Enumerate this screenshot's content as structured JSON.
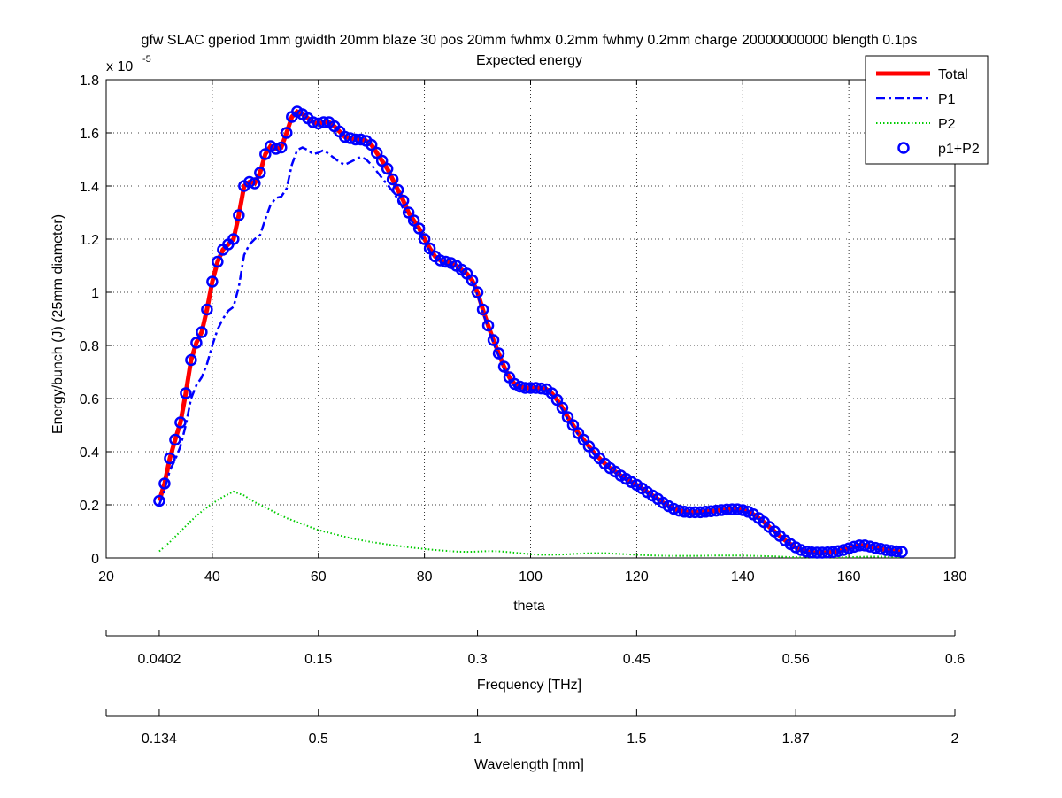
{
  "chart_data": {
    "type": "line",
    "title": "gfw SLAC gperiod 1mm gwidth 20mm blaze 30 pos 20mm fwhmx 0.2mm fwhmy 0.2mm charge 20000000000 blength 0.1ps",
    "subtitle": "Expected energy",
    "xlabel": "theta",
    "ylabel": "Energy/bunch (J) (25mm diameter)",
    "y_exponent_label": "x 10",
    "y_exponent_power": "-5",
    "xlim": [
      20,
      180
    ],
    "ylim": [
      0,
      1.8
    ],
    "x_ticks": [
      "20",
      "40",
      "60",
      "80",
      "100",
      "120",
      "140",
      "160",
      "180"
    ],
    "y_ticks": [
      "0",
      "0.2",
      "0.4",
      "0.6",
      "0.8",
      "1",
      "1.2",
      "1.4",
      "1.6",
      "1.8"
    ],
    "grid": true,
    "legend_position": "top-right",
    "colors": {
      "total": "#ff0000",
      "p1": "#0000ff",
      "p2": "#00cc00",
      "p1p2": "#0000ff"
    },
    "series": [
      {
        "name": "Total",
        "style": "solid-thick",
        "x": [
          30,
          31,
          32,
          33,
          34,
          35,
          36,
          37,
          38,
          39,
          40,
          41,
          42,
          43,
          44,
          45,
          46,
          47,
          48,
          49,
          50,
          51,
          52,
          53,
          54,
          55,
          56,
          57,
          58,
          59,
          60,
          61,
          62,
          63,
          64,
          65,
          66,
          67,
          68,
          69,
          70,
          71,
          72,
          73,
          74,
          75,
          76,
          77,
          78,
          79,
          80,
          81,
          82,
          83,
          84,
          85,
          86,
          87,
          88,
          89,
          90,
          91,
          92,
          93,
          94,
          95,
          96,
          97,
          98,
          99,
          100,
          101,
          102,
          103,
          104,
          105,
          106,
          107,
          108,
          109,
          110,
          111,
          112,
          113,
          114,
          115,
          116,
          117,
          118,
          119,
          120,
          121,
          122,
          123,
          124,
          125,
          126,
          127,
          128,
          129,
          130,
          131,
          132,
          133,
          134,
          135,
          136,
          137,
          138,
          139,
          140,
          141,
          142,
          143,
          144,
          145,
          146,
          147,
          148,
          149,
          150,
          151,
          152,
          153,
          154,
          155,
          156,
          157,
          158,
          159,
          160,
          161,
          162,
          163,
          164,
          165,
          166,
          167,
          168,
          169,
          170
        ],
        "values": [
          0.215,
          0.28,
          0.375,
          0.445,
          0.51,
          0.62,
          0.745,
          0.81,
          0.85,
          0.935,
          1.04,
          1.115,
          1.16,
          1.18,
          1.2,
          1.29,
          1.4,
          1.415,
          1.41,
          1.45,
          1.52,
          1.55,
          1.54,
          1.545,
          1.6,
          1.66,
          1.68,
          1.67,
          1.655,
          1.64,
          1.635,
          1.64,
          1.64,
          1.625,
          1.605,
          1.585,
          1.58,
          1.575,
          1.575,
          1.57,
          1.555,
          1.525,
          1.495,
          1.465,
          1.425,
          1.385,
          1.345,
          1.3,
          1.27,
          1.24,
          1.2,
          1.165,
          1.135,
          1.12,
          1.115,
          1.11,
          1.1,
          1.085,
          1.07,
          1.045,
          1.0,
          0.935,
          0.875,
          0.82,
          0.77,
          0.72,
          0.68,
          0.655,
          0.645,
          0.64,
          0.64,
          0.64,
          0.638,
          0.635,
          0.62,
          0.595,
          0.565,
          0.53,
          0.5,
          0.47,
          0.445,
          0.42,
          0.395,
          0.375,
          0.355,
          0.338,
          0.325,
          0.31,
          0.298,
          0.286,
          0.275,
          0.262,
          0.248,
          0.235,
          0.222,
          0.208,
          0.195,
          0.185,
          0.178,
          0.174,
          0.172,
          0.172,
          0.172,
          0.174,
          0.176,
          0.178,
          0.18,
          0.182,
          0.183,
          0.183,
          0.18,
          0.174,
          0.164,
          0.15,
          0.135,
          0.117,
          0.1,
          0.083,
          0.066,
          0.052,
          0.04,
          0.03,
          0.024,
          0.021,
          0.02,
          0.02,
          0.021,
          0.022,
          0.026,
          0.03,
          0.036,
          0.042,
          0.047,
          0.047,
          0.043,
          0.038,
          0.034,
          0.03,
          0.027,
          0.025,
          0.023
        ]
      },
      {
        "name": "P1",
        "style": "dash-dot",
        "x": [
          30,
          31,
          32,
          33,
          34,
          35,
          36,
          37,
          38,
          39,
          40,
          41,
          42,
          43,
          44,
          45,
          46,
          47,
          48,
          49,
          50,
          51,
          52,
          53,
          54,
          55,
          56,
          57,
          58,
          59,
          60,
          61,
          62,
          63,
          64,
          65,
          66,
          67,
          68,
          69,
          70,
          71,
          72,
          73,
          74,
          75,
          76,
          77,
          78,
          79,
          80,
          81,
          82,
          83,
          84,
          85,
          86,
          87,
          88,
          89,
          90,
          91,
          92,
          93,
          94,
          95,
          96,
          97,
          98,
          99,
          100,
          101,
          102,
          103,
          104,
          105,
          106,
          107,
          108,
          109,
          110,
          111,
          112,
          113,
          114,
          115,
          116,
          117,
          118,
          119,
          120,
          121,
          122,
          123,
          124,
          125,
          126,
          127,
          128,
          129,
          130,
          131,
          132,
          133,
          134,
          135,
          136,
          137,
          138,
          139,
          140,
          141,
          142,
          143,
          144,
          145,
          146,
          147,
          148,
          149,
          150,
          151,
          152,
          153,
          154,
          155,
          156,
          157,
          158,
          159,
          160,
          161,
          162,
          163,
          164,
          165,
          166,
          167,
          168,
          169,
          170
        ],
        "values": [
          0.2,
          0.255,
          0.33,
          0.37,
          0.42,
          0.5,
          0.6,
          0.65,
          0.68,
          0.73,
          0.8,
          0.86,
          0.9,
          0.93,
          0.945,
          1.02,
          1.14,
          1.18,
          1.2,
          1.215,
          1.275,
          1.33,
          1.355,
          1.36,
          1.39,
          1.48,
          1.535,
          1.545,
          1.535,
          1.52,
          1.525,
          1.535,
          1.52,
          1.505,
          1.49,
          1.48,
          1.49,
          1.5,
          1.51,
          1.5,
          1.48,
          1.455,
          1.43,
          1.405,
          1.38,
          1.35,
          1.315,
          1.285,
          1.255,
          1.225,
          1.19,
          1.155,
          1.13,
          1.115,
          1.105,
          1.1,
          1.09,
          1.075,
          1.06,
          1.035,
          0.99,
          0.925,
          0.865,
          0.81,
          0.76,
          0.71,
          0.67,
          0.645,
          0.635,
          0.632,
          0.632,
          0.632,
          0.63,
          0.627,
          0.612,
          0.588,
          0.558,
          0.523,
          0.493,
          0.463,
          0.438,
          0.413,
          0.389,
          0.369,
          0.349,
          0.332,
          0.319,
          0.304,
          0.293,
          0.281,
          0.27,
          0.257,
          0.243,
          0.23,
          0.217,
          0.203,
          0.19,
          0.18,
          0.173,
          0.169,
          0.167,
          0.167,
          0.167,
          0.169,
          0.171,
          0.173,
          0.175,
          0.177,
          0.178,
          0.178,
          0.175,
          0.169,
          0.159,
          0.145,
          0.131,
          0.113,
          0.096,
          0.08,
          0.063,
          0.049,
          0.037,
          0.027,
          0.021,
          0.018,
          0.017,
          0.017,
          0.018,
          0.019,
          0.023,
          0.027,
          0.032,
          0.038,
          0.043,
          0.043,
          0.039,
          0.034,
          0.03,
          0.026,
          0.023,
          0.021,
          0.019
        ]
      },
      {
        "name": "P2",
        "style": "dotted",
        "x": [
          30,
          32,
          34,
          36,
          38,
          40,
          42,
          44,
          46,
          48,
          50,
          52,
          54,
          56,
          58,
          60,
          62,
          64,
          66,
          68,
          70,
          72,
          74,
          76,
          78,
          80,
          82,
          84,
          86,
          88,
          90,
          92,
          94,
          96,
          98,
          100,
          102,
          104,
          106,
          108,
          110,
          112,
          114,
          116,
          118,
          120,
          122,
          124,
          126,
          128,
          130,
          132,
          134,
          136,
          138,
          140,
          142,
          144,
          146,
          148,
          150,
          152,
          154,
          156,
          158,
          160,
          162,
          164,
          166,
          168,
          170
        ],
        "values": [
          0.025,
          0.06,
          0.1,
          0.14,
          0.175,
          0.205,
          0.23,
          0.25,
          0.235,
          0.21,
          0.19,
          0.17,
          0.15,
          0.135,
          0.12,
          0.105,
          0.095,
          0.085,
          0.075,
          0.067,
          0.06,
          0.054,
          0.048,
          0.043,
          0.038,
          0.034,
          0.03,
          0.027,
          0.024,
          0.023,
          0.024,
          0.026,
          0.025,
          0.022,
          0.018,
          0.014,
          0.012,
          0.012,
          0.013,
          0.015,
          0.017,
          0.018,
          0.018,
          0.016,
          0.014,
          0.012,
          0.01,
          0.009,
          0.008,
          0.008,
          0.008,
          0.008,
          0.009,
          0.009,
          0.009,
          0.009,
          0.008,
          0.007,
          0.006,
          0.004,
          0.003,
          0.002,
          0.002,
          0.002,
          0.003,
          0.003,
          0.004,
          0.005,
          0.005,
          0.004,
          0.003
        ]
      },
      {
        "name": "p1+P2",
        "style": "circles",
        "same_as_series": "Total"
      }
    ],
    "secondary_axes": [
      {
        "label": "Frequency [THz]",
        "tick_positions_theta": [
          30,
          60,
          90,
          120,
          150,
          180
        ],
        "tick_labels": [
          "0.0402",
          "0.15",
          "0.3",
          "0.45",
          "0.56",
          "0.6"
        ]
      },
      {
        "label": "Wavelength [mm]",
        "tick_positions_theta": [
          30,
          60,
          90,
          120,
          150,
          180
        ],
        "tick_labels": [
          "0.134",
          "0.5",
          "1",
          "1.5",
          "1.87",
          "2"
        ]
      }
    ]
  }
}
